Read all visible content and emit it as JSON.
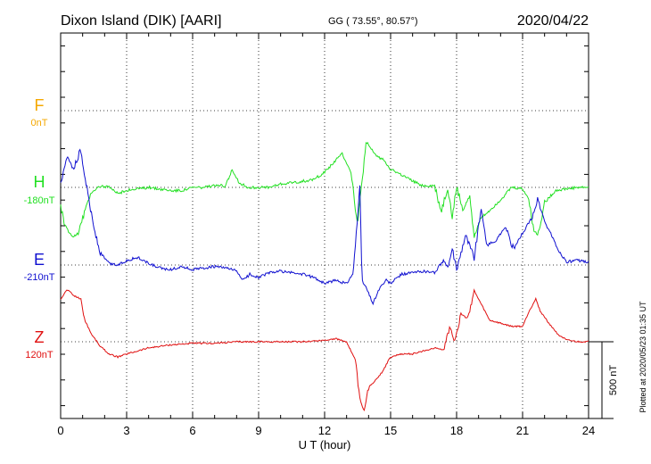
{
  "header": {
    "station": "Dixon Island (DIK)  [AARI]",
    "coords": "GG ( 73.55°,  80.57°)",
    "date": "2020/04/22"
  },
  "plotted_note": "Plotted at 2020/05/23 01:35 UT",
  "scale_bar": {
    "label": "500 nT",
    "value_nT": 500
  },
  "colors": {
    "F": "#f5a800",
    "H": "#22e022",
    "E": "#1010d0",
    "Z": "#e01010",
    "axis": "#000000"
  },
  "chart_data": {
    "type": "line",
    "xlabel": "U T (hour)",
    "xlim": [
      0,
      24
    ],
    "x_ticks": [
      0,
      3,
      6,
      9,
      12,
      15,
      18,
      21,
      24
    ],
    "x_tick_labels": [
      "0",
      "3",
      "6",
      "9",
      "12",
      "15",
      "18",
      "21",
      "24"
    ],
    "series": [
      {
        "name": "F",
        "baseline_label": "0nT",
        "color": "#f5a800",
        "x": [],
        "y": []
      },
      {
        "name": "H",
        "baseline_label": "-180nT",
        "color": "#22e022",
        "x": [
          0,
          0.2,
          0.5,
          0.8,
          1.1,
          1.4,
          1.8,
          2.2,
          2.6,
          3.0,
          3.5,
          4.0,
          4.5,
          5.0,
          5.5,
          6.0,
          6.5,
          7.0,
          7.5,
          7.8,
          8.1,
          8.5,
          9.0,
          9.5,
          10.0,
          10.5,
          11.0,
          11.5,
          12.0,
          12.4,
          12.8,
          13.2,
          13.5,
          13.7,
          13.9,
          14.1,
          14.4,
          14.7,
          15.0,
          15.5,
          16.0,
          16.5,
          17.0,
          17.3,
          17.6,
          17.8,
          18.0,
          18.3,
          18.6,
          18.8,
          19.1,
          19.5,
          20.0,
          20.5,
          21.0,
          21.3,
          21.5,
          21.7,
          22.0,
          22.5,
          23.0,
          23.5,
          24.0
        ],
        "y": [
          -120,
          -250,
          -320,
          -300,
          -150,
          -30,
          10,
          0,
          -40,
          -20,
          -10,
          0,
          -10,
          -20,
          -20,
          0,
          0,
          10,
          10,
          120,
          30,
          0,
          0,
          0,
          20,
          30,
          40,
          50,
          100,
          160,
          220,
          100,
          -250,
          40,
          300,
          250,
          200,
          180,
          120,
          80,
          40,
          10,
          10,
          -160,
          0,
          -200,
          0,
          -150,
          -50,
          -320,
          -200,
          -150,
          -80,
          0,
          -10,
          -80,
          -280,
          -310,
          -100,
          -20,
          -10,
          0,
          0
        ]
      },
      {
        "name": "E",
        "baseline_label": "-210nT",
        "color": "#1010d0",
        "x": [
          0,
          0.3,
          0.6,
          0.9,
          1.2,
          1.5,
          1.8,
          2.2,
          2.6,
          3.0,
          3.5,
          4.0,
          4.5,
          5.0,
          5.5,
          6.0,
          6.5,
          7.0,
          7.5,
          8.0,
          8.3,
          8.6,
          9.0,
          9.5,
          10.0,
          10.5,
          11.0,
          11.5,
          12.0,
          12.5,
          13.0,
          13.3,
          13.6,
          13.7,
          13.9,
          14.2,
          14.5,
          14.8,
          15.0,
          15.5,
          16.0,
          16.5,
          17.0,
          17.4,
          17.6,
          17.8,
          18.0,
          18.4,
          18.8,
          19.1,
          19.4,
          19.8,
          20.2,
          20.6,
          21.0,
          21.4,
          21.7,
          22.0,
          22.3,
          22.6,
          23.0,
          23.5,
          24.0
        ],
        "y": [
          520,
          700,
          620,
          760,
          500,
          250,
          80,
          10,
          0,
          30,
          50,
          10,
          -20,
          -30,
          -10,
          -30,
          -20,
          -10,
          -20,
          -40,
          -100,
          -60,
          -80,
          -50,
          -40,
          -50,
          -60,
          -80,
          -120,
          -100,
          -120,
          -50,
          500,
          -100,
          -150,
          -250,
          -150,
          -100,
          -120,
          -60,
          -50,
          -40,
          -50,
          30,
          -20,
          100,
          -30,
          200,
          50,
          360,
          130,
          160,
          250,
          100,
          210,
          300,
          430,
          280,
          200,
          100,
          20,
          30,
          20
        ]
      },
      {
        "name": "Z",
        "baseline_label": "120nT",
        "color": "#e01010",
        "x": [
          0,
          0.3,
          0.6,
          0.9,
          1.1,
          1.4,
          1.8,
          2.2,
          2.6,
          3.0,
          3.5,
          4.0,
          5.0,
          6.0,
          7.0,
          8.0,
          9.0,
          10.0,
          11.0,
          12.0,
          12.5,
          13.0,
          13.4,
          13.6,
          13.8,
          14.0,
          14.3,
          14.6,
          15.0,
          15.5,
          16.0,
          16.5,
          17.0,
          17.4,
          17.7,
          17.9,
          18.2,
          18.5,
          18.8,
          19.1,
          19.5,
          20.0,
          20.5,
          21.0,
          21.3,
          21.6,
          21.8,
          22.2,
          22.6,
          23.0,
          23.5,
          24.0
        ],
        "y": [
          280,
          340,
          300,
          280,
          140,
          50,
          -30,
          -80,
          -100,
          -80,
          -60,
          -40,
          -20,
          -10,
          -10,
          0,
          0,
          0,
          0,
          10,
          20,
          0,
          -120,
          -380,
          -450,
          -300,
          -250,
          -200,
          -100,
          -80,
          -80,
          -60,
          -40,
          -50,
          100,
          0,
          180,
          150,
          330,
          250,
          140,
          120,
          100,
          100,
          200,
          280,
          200,
          120,
          50,
          10,
          0,
          0
        ]
      }
    ],
    "grid": true
  }
}
